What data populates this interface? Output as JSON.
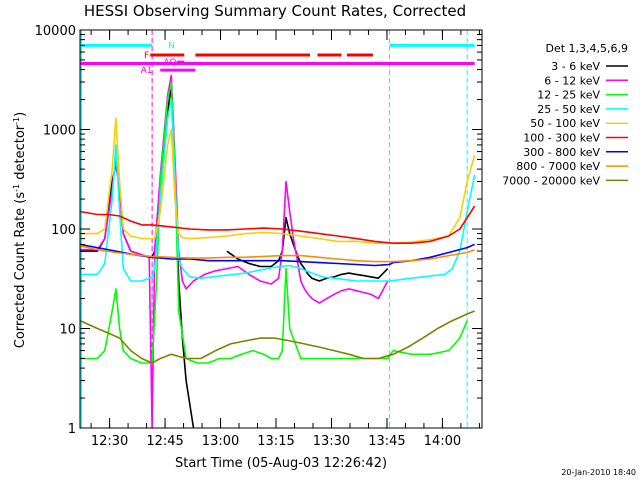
{
  "chart_data": {
    "type": "line",
    "title": "HESSI Observing Summary Count Rates, Corrected",
    "xlabel": "Start Time (05-Aug-03 12:26:42)",
    "ylabel_main": "Corrected Count Rate (s",
    "ylabel_sup1": "-1",
    "ylabel_mid": " detector",
    "ylabel_sup2": "-1",
    "ylabel_end": ")",
    "yscale": "log",
    "ylim": [
      1,
      10000
    ],
    "xlim_min": [
      -4.7,
      104
    ],
    "yticks": [
      {
        "v": 1,
        "label": "1"
      },
      {
        "v": 10,
        "label": "10"
      },
      {
        "v": 100,
        "label": "100"
      },
      {
        "v": 1000,
        "label": "1000"
      },
      {
        "v": 10000,
        "label": "10000"
      }
    ],
    "xticks": [
      {
        "v": 3.3,
        "label": "12:30"
      },
      {
        "v": 18.3,
        "label": "12:45"
      },
      {
        "v": 33.3,
        "label": "13:00"
      },
      {
        "v": 48.3,
        "label": "13:15"
      },
      {
        "v": 63.3,
        "label": "13:30"
      },
      {
        "v": 78.3,
        "label": "13:45"
      },
      {
        "v": 93.3,
        "label": "14:00"
      }
    ],
    "timestamp": "20-Jan-2010 18:40",
    "legend_title": "Det 1,3,4,5,6,9",
    "attenuator_lines": [
      {
        "x": 14.8,
        "color": "#ff00ff"
      },
      {
        "x": 79.0,
        "color": "#00ffff"
      },
      {
        "x": 100.0,
        "color": "#00ffff"
      }
    ],
    "night_line": {
      "x": -4.7,
      "color": "#00ffff"
    },
    "flags": [
      {
        "label": "N",
        "color": "#00ffff",
        "label_x": 20.0,
        "y": 7000,
        "segments": [
          [
            -4.7,
            14.8
          ],
          [
            79.0,
            102.0
          ]
        ]
      },
      {
        "label": "F",
        "color": "#ff0000",
        "label_x": 13.3,
        "y": 5600,
        "segments": [
          [
            14.3,
            23.5
          ],
          [
            26.5,
            57.5
          ],
          [
            59.5,
            66.0
          ],
          [
            67.5,
            74.5
          ]
        ]
      },
      {
        "label": "AQ",
        "color": "#ff00ff",
        "label_x": 19.6,
        "y": 4750,
        "segments": [
          [
            21.5,
            23.5
          ]
        ]
      },
      {
        "label": "",
        "color": "#ff00ff",
        "label_x": 0,
        "y": 4600,
        "segments": [
          [
            -4.7,
            102.0
          ]
        ]
      },
      {
        "label": "A1",
        "color": "#ff00ff",
        "label_x": 13.3,
        "y": 3950,
        "segments": [
          [
            17.0,
            26.5
          ]
        ]
      }
    ],
    "series": [
      {
        "name": "3 - 6 keV",
        "color": "#000000",
        "x": [
          -4.7,
          0,
          2,
          4,
          5,
          6,
          7,
          9,
          12,
          14,
          14.8,
          15.5,
          17,
          19,
          20,
          21,
          22,
          23,
          24,
          26,
          29,
          32,
          35,
          38,
          41,
          44,
          47,
          49,
          50,
          51,
          52,
          53,
          54,
          55,
          56,
          57,
          58,
          60,
          62,
          64,
          66,
          68,
          70,
          72,
          74,
          76,
          78.5,
          79,
          80,
          85,
          90,
          95,
          98,
          100
        ],
        "y": [
          60,
          60,
          80,
          300,
          450,
          250,
          90,
          60,
          55,
          52,
          52,
          60,
          300,
          1500,
          2700,
          400,
          30,
          8,
          3,
          1,
          null,
          null,
          60,
          50,
          45,
          42,
          42,
          48,
          60,
          130,
          90,
          70,
          55,
          45,
          40,
          35,
          32,
          30,
          32,
          33,
          35,
          36,
          35,
          34,
          33,
          32,
          40,
          null,
          null,
          null,
          null,
          null,
          null,
          null
        ]
      },
      {
        "name": "6 - 12 keV",
        "color": "#ff00ff",
        "x": [
          -4.7,
          0,
          2,
          4,
          5,
          6,
          7,
          9,
          12,
          14,
          14.8,
          15.5,
          17,
          19,
          20,
          21,
          22,
          23,
          24,
          26,
          29,
          32,
          35,
          38,
          41,
          44,
          47,
          49,
          50,
          51,
          52,
          53,
          54,
          55,
          56,
          57,
          58,
          60,
          62,
          64,
          66,
          68,
          70,
          72,
          74,
          76,
          78.5,
          79,
          80,
          85,
          90,
          95,
          98,
          100
        ],
        "y": [
          62,
          62,
          80,
          250,
          500,
          250,
          90,
          60,
          55,
          52,
          1,
          60,
          350,
          2200,
          3500,
          500,
          60,
          30,
          25,
          30,
          35,
          38,
          40,
          42,
          35,
          30,
          28,
          32,
          60,
          300,
          150,
          80,
          50,
          30,
          25,
          22,
          20,
          18,
          20,
          22,
          24,
          25,
          24,
          23,
          22,
          20,
          30,
          null,
          null,
          null,
          null,
          null,
          null,
          null
        ]
      },
      {
        "name": "12 - 25 keV",
        "color": "#00ff00",
        "x": [
          -4.7,
          0,
          2,
          4,
          5,
          6,
          7,
          9,
          12,
          14,
          14.8,
          16,
          17,
          19,
          20,
          21,
          22,
          24,
          27,
          30,
          33,
          36,
          39,
          42,
          45,
          47,
          48,
          49,
          50,
          51,
          52,
          55,
          58,
          61,
          64,
          67,
          70,
          73,
          76,
          78.5,
          80,
          85,
          90,
          95,
          98,
          100
        ],
        "y": [
          5,
          5,
          6,
          15,
          25,
          10,
          6,
          5,
          4.5,
          4.5,
          4.5,
          30,
          300,
          2000,
          3000,
          400,
          15,
          5,
          4.5,
          4.5,
          5,
          5,
          5.5,
          6,
          5.5,
          5,
          5,
          5,
          6,
          40,
          10,
          5,
          5,
          5,
          5,
          5,
          5,
          5,
          5,
          5,
          6,
          5.5,
          5.5,
          6,
          8,
          12
        ]
      },
      {
        "name": "25 - 50 keV",
        "color": "#00ffff",
        "x": [
          -4.7,
          0,
          2,
          4,
          5,
          6,
          7,
          9,
          12,
          14,
          14.8,
          15.5,
          17,
          19,
          20,
          21,
          22,
          23,
          25,
          28,
          31,
          34,
          37,
          40,
          43,
          46,
          49,
          52,
          55,
          58,
          61,
          64,
          67,
          70,
          73,
          76,
          79,
          82,
          85,
          88,
          91,
          94,
          96,
          98,
          100,
          102
        ],
        "y": [
          35,
          35,
          45,
          200,
          700,
          150,
          40,
          30,
          30,
          32,
          33,
          40,
          200,
          1300,
          2000,
          300,
          50,
          40,
          33,
          32,
          33,
          34,
          35,
          36,
          38,
          40,
          42,
          43,
          40,
          36,
          33,
          32,
          31,
          30,
          30,
          30,
          30,
          31,
          32,
          33,
          34,
          35,
          40,
          60,
          150,
          350
        ]
      },
      {
        "name": "50 - 100 keV",
        "color": "#ffcc00",
        "x": [
          -4.7,
          0,
          2,
          4,
          5,
          6,
          7,
          9,
          12,
          14,
          14.8,
          15.5,
          17,
          19,
          20,
          21,
          22,
          23,
          25,
          30,
          35,
          40,
          45,
          50,
          55,
          60,
          65,
          70,
          75,
          80,
          85,
          90,
          95,
          98,
          100,
          102
        ],
        "y": [
          90,
          90,
          100,
          400,
          1300,
          300,
          100,
          85,
          80,
          80,
          80,
          80,
          150,
          700,
          1000,
          200,
          90,
          82,
          80,
          82,
          85,
          90,
          92,
          90,
          85,
          80,
          75,
          75,
          72,
          72,
          74,
          78,
          85,
          130,
          300,
          550
        ]
      },
      {
        "name": "100 - 300 keV",
        "color": "#ff0000",
        "x": [
          -4.7,
          0,
          3,
          6,
          9,
          12,
          14.8,
          20,
          25,
          30,
          35,
          40,
          45,
          50,
          55,
          60,
          65,
          70,
          75,
          80,
          85,
          90,
          95,
          98,
          100,
          102
        ],
        "y": [
          150,
          140,
          140,
          135,
          120,
          110,
          110,
          105,
          100,
          98,
          98,
          100,
          102,
          100,
          95,
          90,
          85,
          80,
          75,
          72,
          72,
          75,
          85,
          100,
          130,
          170
        ]
      },
      {
        "name": "300 - 800 keV",
        "color": "#0000ff",
        "x": [
          -4.7,
          0,
          5,
          10,
          14.8,
          20,
          25,
          30,
          35,
          40,
          45,
          50,
          55,
          60,
          65,
          70,
          75,
          79,
          80,
          85,
          90,
          95,
          100,
          102
        ],
        "y": [
          70,
          65,
          60,
          55,
          52,
          50,
          50,
          48,
          48,
          48,
          48,
          48,
          47,
          46,
          45,
          44,
          43,
          44,
          46,
          48,
          52,
          58,
          65,
          70
        ]
      },
      {
        "name": "800 - 7000 keV",
        "color": "#ff8c00",
        "x": [
          -4.7,
          0,
          5,
          10,
          14.8,
          20,
          25,
          30,
          35,
          40,
          45,
          50,
          55,
          60,
          65,
          70,
          75,
          80,
          85,
          90,
          95,
          100,
          102
        ],
        "y": [
          68,
          62,
          58,
          55,
          53,
          52,
          51,
          51,
          52,
          52,
          53,
          54,
          54,
          52,
          50,
          48,
          47,
          47,
          48,
          50,
          54,
          58,
          62
        ]
      },
      {
        "name": "7000 - 20000 keV",
        "color": "#808000",
        "x": [
          -4.7,
          0,
          3,
          6,
          9,
          12,
          14.8,
          17,
          20,
          24,
          28,
          32,
          36,
          40,
          44,
          48,
          52,
          56,
          60,
          64,
          68,
          72,
          76,
          80,
          84,
          88,
          92,
          96,
          100,
          102
        ],
        "y": [
          12,
          10,
          9,
          8,
          6,
          5,
          4.5,
          5,
          5.5,
          5,
          5,
          6,
          7,
          7.5,
          8,
          8,
          7.5,
          7,
          6.5,
          6,
          5.5,
          5,
          5,
          5.5,
          6.5,
          8,
          10,
          12,
          14,
          15
        ]
      }
    ]
  }
}
